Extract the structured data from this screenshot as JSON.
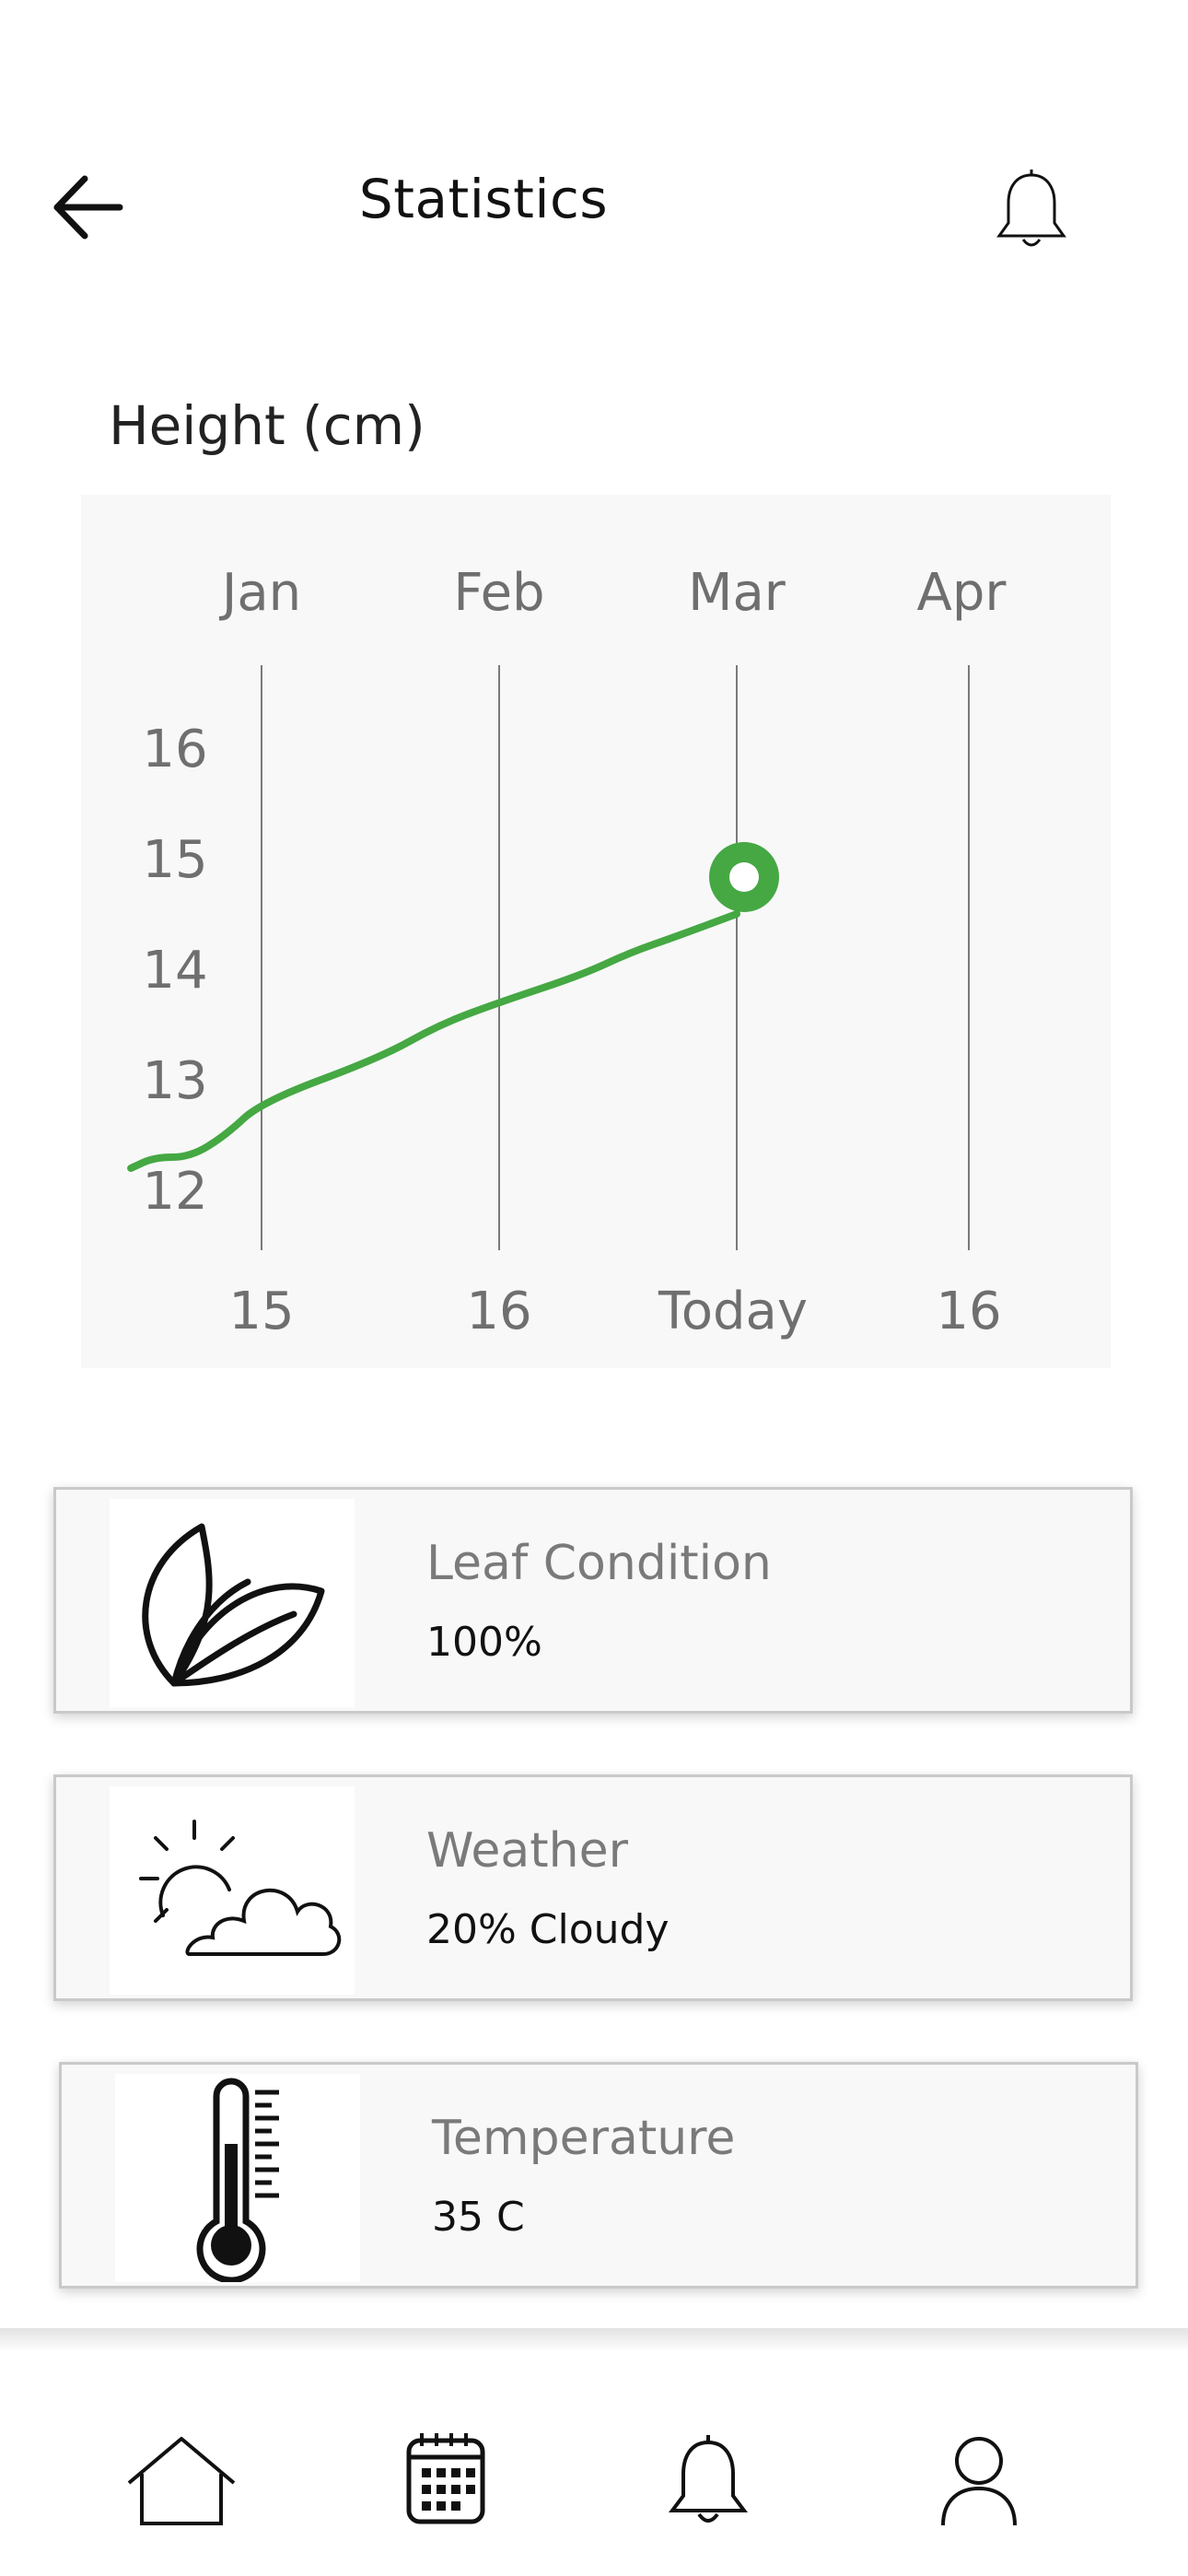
{
  "header": {
    "title": "Statistics",
    "back_icon": "arrow-left-icon",
    "notification_icon": "bell-icon"
  },
  "chart_section": {
    "label": "Height (cm)"
  },
  "chart_data": {
    "type": "line",
    "title": "Height (cm)",
    "top_labels": [
      "Jan",
      "Feb",
      "Mar",
      "Apr"
    ],
    "bottom_labels": [
      "15",
      "16",
      "Today",
      "16"
    ],
    "y_ticks": [
      16,
      15,
      14,
      13,
      12
    ],
    "ylim": [
      11.9,
      16.7
    ],
    "series": [
      {
        "color": "#45a843",
        "points": [
          {
            "x": -0.55,
            "y": 12.2
          },
          {
            "x": -0.45,
            "y": 12.3
          },
          {
            "x": -0.3,
            "y": 12.3
          },
          {
            "x": -0.15,
            "y": 12.5
          },
          {
            "x": 0.0,
            "y": 12.8
          },
          {
            "x": 0.5,
            "y": 13.2
          },
          {
            "x": 0.75,
            "y": 13.5
          },
          {
            "x": 1.0,
            "y": 13.7
          },
          {
            "x": 1.35,
            "y": 13.95
          },
          {
            "x": 1.55,
            "y": 14.15
          },
          {
            "x": 1.75,
            "y": 14.3
          },
          {
            "x": 2.0,
            "y": 14.5
          }
        ],
        "current_marker": {
          "x": 2.0,
          "y": 14.5
        }
      }
    ],
    "grid": "vertical",
    "background": "#f8f8f8"
  },
  "cards": [
    {
      "title": "Leaf Condition",
      "value": "100%",
      "icon": "leaf-icon"
    },
    {
      "title": "Weather",
      "value": "20%  Cloudy",
      "icon": "partly-cloudy-icon"
    },
    {
      "title": "Temperature",
      "value": "35 C",
      "icon": "thermometer-icon"
    }
  ],
  "bottom_nav": {
    "items": [
      {
        "name": "home",
        "icon": "home-icon"
      },
      {
        "name": "calendar",
        "icon": "calendar-icon"
      },
      {
        "name": "notifications",
        "icon": "bell-icon"
      },
      {
        "name": "profile",
        "icon": "user-icon"
      }
    ]
  },
  "colors": {
    "accent": "#45a843",
    "card_background": "#f8f8f8",
    "chart_background": "#f8f8f8"
  }
}
